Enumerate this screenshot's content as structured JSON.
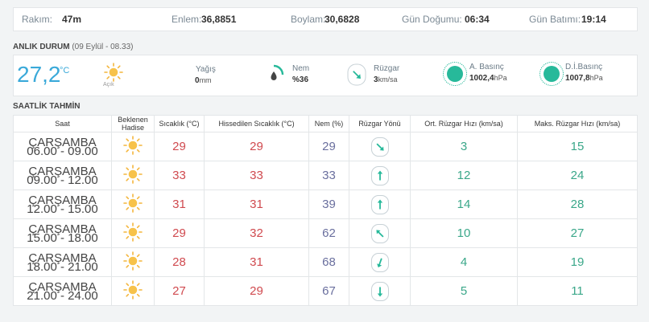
{
  "location_bar": {
    "rakim_label": "Rakım:",
    "rakim_value": "47m",
    "enlem_label": "Enlem:",
    "enlem_value": "36,8851",
    "boylam_label": "Boylam:",
    "boylam_value": "30,6828",
    "dogumu_label": "Gün Doğumu:",
    "dogumu_value": "06:34",
    "batimi_label": "Gün Batımı:",
    "batimi_value": "19:14"
  },
  "current": {
    "title": "ANLIK DURUM",
    "subtitle": "(09 Eylül - 08.33)",
    "temperature": "27,2",
    "unit": "°C",
    "condition": "Açık",
    "yagis_label": "Yağış",
    "yagis_value": "0",
    "yagis_unit": "mm",
    "nem_label": "Nem",
    "nem_value": "%36",
    "ruzgar_label": "Rüzgar",
    "ruzgar_value": "3",
    "ruzgar_unit": "km/sa",
    "abasinc_label": "A. Basınç",
    "abasinc_value": "1002,4",
    "abasinc_unit": "hPa",
    "dibasinc_label": "D.İ.Basınç",
    "dibasinc_value": "1007,8",
    "dibasinc_unit": "hPa",
    "accent_color": "#3aa9d9",
    "pressure_color": "#27b99a"
  },
  "forecast": {
    "title": "SAATLİK TAHMİN",
    "headers": {
      "saat": "Saat",
      "hadise_1": "Beklenen",
      "hadise_2": "Hadise",
      "sicaklik": "Sıcaklık (°C)",
      "hissedilen": "Hissedilen Sıcaklık (°C)",
      "nem": "Nem (%)",
      "yon": "Rüzgar Yönü",
      "ort": "Ort. Rüzgar Hızı (km/sa)",
      "maks": "Maks. Rüzgar Hızı (km/sa)"
    },
    "rows": [
      {
        "day": "ÇARŞAMBA",
        "time": "06.00 - 09.00",
        "icon": "sun-icon",
        "temp": "29",
        "feels": "29",
        "humidity": "29",
        "wind_dir_deg": 135,
        "avg": "3",
        "max": "15"
      },
      {
        "day": "ÇARŞAMBA",
        "time": "09.00 - 12.00",
        "icon": "sun-icon",
        "temp": "33",
        "feels": "33",
        "humidity": "33",
        "wind_dir_deg": 0,
        "avg": "12",
        "max": "24"
      },
      {
        "day": "ÇARŞAMBA",
        "time": "12.00 - 15.00",
        "icon": "sun-icon",
        "temp": "31",
        "feels": "31",
        "humidity": "39",
        "wind_dir_deg": 0,
        "avg": "14",
        "max": "28"
      },
      {
        "day": "ÇARŞAMBA",
        "time": "15.00 - 18.00",
        "icon": "sun-icon",
        "temp": "29",
        "feels": "32",
        "humidity": "62",
        "wind_dir_deg": -45,
        "avg": "10",
        "max": "27"
      },
      {
        "day": "ÇARŞAMBA",
        "time": "18.00 - 21.00",
        "icon": "sun-icon",
        "temp": "28",
        "feels": "31",
        "humidity": "68",
        "wind_dir_deg": 200,
        "avg": "4",
        "max": "19"
      },
      {
        "day": "ÇARŞAMBA",
        "time": "21.00 - 24.00",
        "icon": "sun-icon",
        "temp": "27",
        "feels": "29",
        "humidity": "67",
        "wind_dir_deg": 180,
        "avg": "5",
        "max": "11"
      }
    ]
  }
}
